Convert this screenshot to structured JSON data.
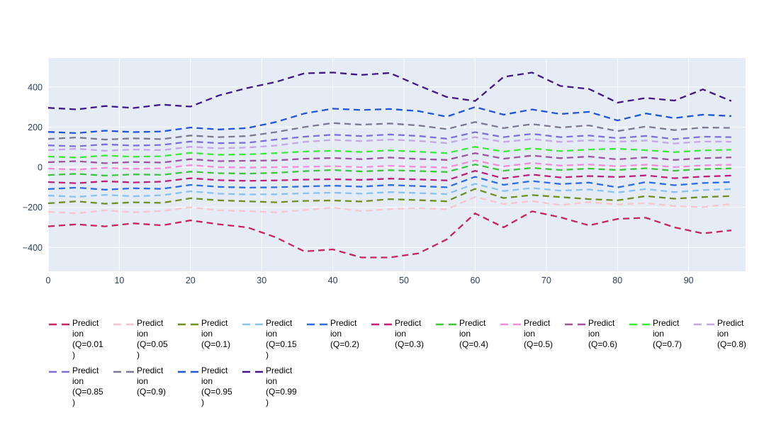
{
  "chart_data": {
    "type": "line",
    "title": "",
    "xlabel": "",
    "ylabel": "",
    "grid": true,
    "legend_position": "bottom",
    "plot_bg": "#E5ECF6",
    "grid_color": "#FFFFFF",
    "tick_color": "#2A3F5F",
    "line_style": "dash",
    "x_range": [
      0,
      98
    ],
    "y_range": [
      -519,
      544
    ],
    "x_ticks": [
      0,
      10,
      20,
      30,
      40,
      50,
      60,
      70,
      80,
      90
    ],
    "y_ticks": [
      -400,
      -200,
      0,
      200,
      400
    ],
    "x": [
      0,
      4,
      8,
      12,
      16,
      20,
      24,
      28,
      32,
      36,
      40,
      44,
      48,
      52,
      56,
      60,
      64,
      68,
      72,
      76,
      80,
      84,
      88,
      92,
      96
    ],
    "series": [
      {
        "name": "Prediction (Q=0.01)",
        "quantile": 0.01,
        "color": "#C9245C",
        "label_lines": [
          "Predict",
          "ion",
          "(Q=0.01",
          ")"
        ],
        "values": [
          -295,
          -285,
          -295,
          -280,
          -290,
          -265,
          -285,
          -300,
          -350,
          -420,
          -410,
          -450,
          -450,
          -430,
          -360,
          -230,
          -300,
          -220,
          -250,
          -290,
          -258,
          -252,
          -300,
          -330,
          -315
        ]
      },
      {
        "name": "Prediction (Q=0.05)",
        "quantile": 0.05,
        "color": "#F8C5CE",
        "label_lines": [
          "Predict",
          "ion",
          "(Q=0.05",
          ")"
        ],
        "values": [
          -222,
          -230,
          -215,
          -225,
          -218,
          -200,
          -215,
          -219,
          -225,
          -214,
          -201,
          -219,
          -209,
          -204,
          -210,
          -148,
          -184,
          -169,
          -189,
          -174,
          -186,
          -179,
          -194,
          -199,
          -184
        ]
      },
      {
        "name": "Prediction (Q=0.1)",
        "quantile": 0.1,
        "color": "#6E9023",
        "label_lines": [
          "Predict",
          "ion",
          "(Q=0.1)"
        ],
        "values": [
          -180,
          -170,
          -182,
          -175,
          -178,
          -155,
          -165,
          -170,
          -175,
          -168,
          -166,
          -171,
          -159,
          -164,
          -170,
          -108,
          -154,
          -139,
          -149,
          -159,
          -165,
          -144,
          -157,
          -149,
          -144
        ]
      },
      {
        "name": "Prediction (Q=0.15)",
        "quantile": 0.15,
        "color": "#8AC2EF",
        "label_lines": [
          "Predict",
          "ion",
          "(Q=0.15",
          ")"
        ],
        "values": [
          -141,
          -148,
          -138,
          -145,
          -140,
          -120,
          -132,
          -136,
          -135,
          -130,
          -127,
          -132,
          -124,
          -129,
          -134,
          -83,
          -119,
          -104,
          -117,
          -111,
          -126,
          -109,
          -124,
          -114,
          -109
        ]
      },
      {
        "name": "Prediction (Q=0.2)",
        "quantile": 0.2,
        "color": "#2E6CE6",
        "label_lines": [
          "Predict",
          "ion",
          "(Q=0.2)"
        ],
        "values": [
          -109,
          -102,
          -112,
          -105,
          -108,
          -88,
          -98,
          -102,
          -100,
          -96,
          -92,
          -97,
          -89,
          -94,
          -100,
          -48,
          -88,
          -69,
          -84,
          -77,
          -101,
          -74,
          -90,
          -79,
          -74
        ]
      },
      {
        "name": "Prediction (Q=0.3)",
        "quantile": 0.3,
        "color": "#BF2079",
        "label_lines": [
          "Predict",
          "ion",
          "(Q=0.3)"
        ],
        "values": [
          -74,
          -80,
          -70,
          -76,
          -72,
          -55,
          -65,
          -68,
          -66,
          -62,
          -60,
          -63,
          -57,
          -61,
          -66,
          -18,
          -56,
          -37,
          -51,
          -44,
          -49,
          -41,
          -55,
          -47,
          -42
        ]
      },
      {
        "name": "Prediction (Q=0.4)",
        "quantile": 0.4,
        "color": "#3EC53E",
        "label_lines": [
          "Predict",
          "ion",
          "(Q=0.4)"
        ],
        "values": [
          -39,
          -33,
          -42,
          -36,
          -38,
          -22,
          -30,
          -32,
          -28,
          -20,
          -14,
          -21,
          -15,
          -19,
          -24,
          14,
          -18,
          -3,
          -14,
          -7,
          -14,
          -5,
          -18,
          -9,
          -6
        ]
      },
      {
        "name": "Prediction (Q=0.5)",
        "quantile": 0.5,
        "color": "#F18CD9",
        "label_lines": [
          "Predict",
          "ion",
          "(Q=0.5)"
        ],
        "values": [
          -7,
          -12,
          -3,
          -8,
          -5,
          10,
          0,
          -2,
          0,
          2,
          5,
          0,
          7,
          2,
          -2,
          34,
          4,
          21,
          8,
          14,
          4,
          13,
          0,
          9,
          12
        ]
      },
      {
        "name": "Prediction (Q=0.6)",
        "quantile": 0.6,
        "color": "#A153A1",
        "label_lines": [
          "Predict",
          "ion",
          "(Q=0.6)"
        ],
        "values": [
          25,
          30,
          20,
          26,
          23,
          40,
          30,
          32,
          34,
          42,
          46,
          40,
          48,
          41,
          36,
          70,
          42,
          58,
          45,
          53,
          39,
          49,
          36,
          45,
          49
        ]
      },
      {
        "name": "Prediction (Q=0.7)",
        "quantile": 0.7,
        "color": "#3CE93C",
        "label_lines": [
          "Predict",
          "ion",
          "(Q=0.7)"
        ],
        "values": [
          53,
          48,
          58,
          52,
          55,
          72,
          62,
          64,
          70,
          78,
          82,
          76,
          84,
          77,
          70,
          102,
          78,
          94,
          80,
          88,
          92,
          85,
          75,
          84,
          87
        ]
      },
      {
        "name": "Prediction (Q=0.8)",
        "quantile": 0.8,
        "color": "#C6A6E5",
        "label_lines": [
          "Predict",
          "ion",
          "(Q=0.8)"
        ],
        "values": [
          85,
          92,
          82,
          88,
          85,
          102,
          94,
          98,
          108,
          126,
          136,
          130,
          138,
          131,
          120,
          150,
          126,
          140,
          126,
          134,
          127,
          133,
          118,
          128,
          127
        ]
      },
      {
        "name": "Prediction (Q=0.85)",
        "quantile": 0.85,
        "color": "#7D6EDD",
        "label_lines": [
          "Predict",
          "ion",
          "(Q=0.85",
          ")"
        ],
        "values": [
          109,
          104,
          114,
          108,
          111,
          128,
          120,
          122,
          138,
          152,
          162,
          155,
          163,
          156,
          142,
          175,
          150,
          166,
          150,
          158,
          145,
          156,
          140,
          152,
          150
        ]
      },
      {
        "name": "Prediction (Q=0.9)",
        "quantile": 0.9,
        "color": "#7D7892",
        "label_lines": [
          "Predict",
          "ion",
          "(Q=0.9)"
        ],
        "values": [
          141,
          148,
          138,
          144,
          140,
          158,
          150,
          155,
          175,
          200,
          220,
          212,
          218,
          208,
          190,
          225,
          195,
          215,
          198,
          208,
          180,
          203,
          185,
          198,
          196
        ]
      },
      {
        "name": "Prediction (Q=0.95)",
        "quantile": 0.95,
        "color": "#2355DB",
        "label_lines": [
          "Predict",
          "ion",
          "(Q=0.95",
          ")"
        ],
        "values": [
          176,
          170,
          182,
          175,
          178,
          198,
          188,
          195,
          225,
          268,
          292,
          285,
          290,
          280,
          252,
          300,
          262,
          288,
          265,
          276,
          233,
          268,
          245,
          262,
          255
        ]
      },
      {
        "name": "Prediction (Q=0.99)",
        "quantile": 0.99,
        "color": "#41178A",
        "label_lines": [
          "Predict",
          "ion",
          "(Q=0.99",
          ")"
        ],
        "values": [
          296,
          288,
          305,
          295,
          312,
          302,
          358,
          395,
          425,
          468,
          472,
          460,
          470,
          408,
          350,
          330,
          450,
          472,
          405,
          390,
          322,
          345,
          332,
          388,
          330
        ]
      }
    ]
  }
}
